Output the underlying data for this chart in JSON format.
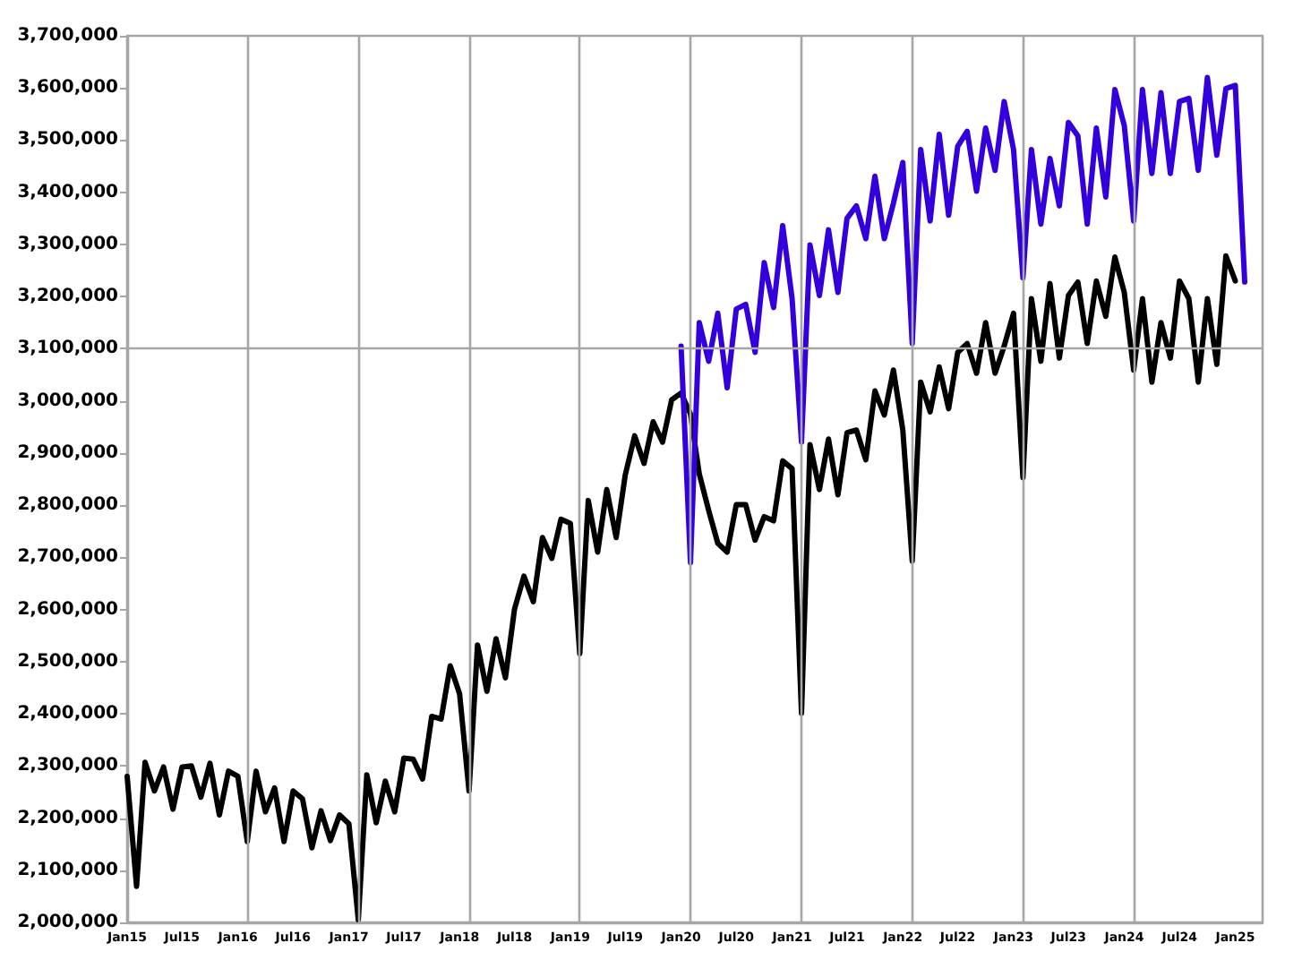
{
  "chart_data": {
    "type": "line",
    "marker": "none",
    "line_style": "solid",
    "xlim": [
      "2015-01",
      "2025-04"
    ],
    "xticks": [
      {
        "value": "2015-01",
        "label": "Jan15"
      },
      {
        "value": "2015-07",
        "label": "Jul15"
      },
      {
        "value": "2016-01",
        "label": "Jan16"
      },
      {
        "value": "2016-07",
        "label": "Jul16"
      },
      {
        "value": "2017-01",
        "label": "Jan17"
      },
      {
        "value": "2017-07",
        "label": "Jul17"
      },
      {
        "value": "2018-01",
        "label": "Jan18"
      },
      {
        "value": "2018-07",
        "label": "Jul18"
      },
      {
        "value": "2019-01",
        "label": "Jan19"
      },
      {
        "value": "2019-07",
        "label": "Jul19"
      },
      {
        "value": "2020-01",
        "label": "Jan20"
      },
      {
        "value": "2020-07",
        "label": "Jul20"
      },
      {
        "value": "2021-01",
        "label": "Jan21"
      },
      {
        "value": "2021-07",
        "label": "Jul21"
      },
      {
        "value": "2022-01",
        "label": "Jan22"
      },
      {
        "value": "2022-07",
        "label": "Jul22"
      },
      {
        "value": "2023-01",
        "label": "Jan23"
      },
      {
        "value": "2023-07",
        "label": "Jul23"
      },
      {
        "value": "2024-01",
        "label": "Jan24"
      },
      {
        "value": "2024-07",
        "label": "Jul24"
      },
      {
        "value": "2025-01",
        "label": "Jan25"
      }
    ],
    "ylim": [
      2000000,
      3700000
    ],
    "yticks": [
      {
        "value": 2000000,
        "label": "2,000,000"
      },
      {
        "value": 2100000,
        "label": "2,100,000"
      },
      {
        "value": 2200000,
        "label": "2,200,000"
      },
      {
        "value": 2300000,
        "label": "2,300,000"
      },
      {
        "value": 2400000,
        "label": "2,400,000"
      },
      {
        "value": 2500000,
        "label": "2,500,000"
      },
      {
        "value": 2600000,
        "label": "2,600,000"
      },
      {
        "value": 2700000,
        "label": "2,700,000"
      },
      {
        "value": 2800000,
        "label": "2,800,000"
      },
      {
        "value": 2900000,
        "label": "2,900,000"
      },
      {
        "value": 3000000,
        "label": "3,000,000"
      },
      {
        "value": 3100000,
        "label": "3,100,000"
      },
      {
        "value": 3200000,
        "label": "3,200,000"
      },
      {
        "value": 3300000,
        "label": "3,300,000"
      },
      {
        "value": 3400000,
        "label": "3,400,000"
      },
      {
        "value": 3500000,
        "label": "3,500,000"
      },
      {
        "value": 3600000,
        "label": "3,600,000"
      },
      {
        "value": 3700000,
        "label": "3,700,000"
      }
    ],
    "ref_lines": [
      {
        "axis": "y",
        "value": 3100000,
        "color": "#a6a6a6"
      },
      {
        "axis": "x",
        "value": "2016-02",
        "color": "#a6a6a6"
      },
      {
        "axis": "x",
        "value": "2017-02",
        "color": "#a6a6a6"
      },
      {
        "axis": "x",
        "value": "2018-02",
        "color": "#a6a6a6"
      },
      {
        "axis": "x",
        "value": "2019-02",
        "color": "#a6a6a6"
      },
      {
        "axis": "x",
        "value": "2020-02",
        "color": "#a6a6a6"
      },
      {
        "axis": "x",
        "value": "2021-02",
        "color": "#a6a6a6"
      },
      {
        "axis": "x",
        "value": "2022-02",
        "color": "#a6a6a6"
      },
      {
        "axis": "x",
        "value": "2023-02",
        "color": "#a6a6a6"
      },
      {
        "axis": "x",
        "value": "2024-02",
        "color": "#a6a6a6"
      }
    ],
    "series": [
      {
        "color": "#000000",
        "x": [
          "2015-01",
          "2015-02",
          "2015-03",
          "2015-04",
          "2015-05",
          "2015-06",
          "2015-07",
          "2015-08",
          "2015-09",
          "2015-10",
          "2015-11",
          "2015-12",
          "2016-01",
          "2016-02",
          "2016-03",
          "2016-04",
          "2016-05",
          "2016-06",
          "2016-07",
          "2016-08",
          "2016-09",
          "2016-10",
          "2016-11",
          "2016-12",
          "2017-01",
          "2017-02",
          "2017-03",
          "2017-04",
          "2017-05",
          "2017-06",
          "2017-07",
          "2017-08",
          "2017-09",
          "2017-10",
          "2017-11",
          "2017-12",
          "2018-01",
          "2018-02",
          "2018-03",
          "2018-04",
          "2018-05",
          "2018-06",
          "2018-07",
          "2018-08",
          "2018-09",
          "2018-10",
          "2018-11",
          "2018-12",
          "2019-01",
          "2019-02",
          "2019-03",
          "2019-04",
          "2019-05",
          "2019-06",
          "2019-07",
          "2019-08",
          "2019-09",
          "2019-10",
          "2019-11",
          "2019-12",
          "2020-01",
          "2020-02",
          "2020-03",
          "2020-04",
          "2020-05",
          "2020-06",
          "2020-07",
          "2020-08",
          "2020-09",
          "2020-10",
          "2020-11",
          "2020-12",
          "2021-01",
          "2021-02",
          "2021-03",
          "2021-04",
          "2021-05",
          "2021-06",
          "2021-07",
          "2021-08",
          "2021-09",
          "2021-10",
          "2021-11",
          "2021-12",
          "2022-01",
          "2022-02",
          "2022-03",
          "2022-04",
          "2022-05",
          "2022-06",
          "2022-07",
          "2022-08",
          "2022-09",
          "2022-10",
          "2022-11",
          "2022-12",
          "2023-01",
          "2023-02",
          "2023-03",
          "2023-04",
          "2023-05",
          "2023-06",
          "2023-07",
          "2023-08",
          "2023-09",
          "2023-10",
          "2023-11",
          "2023-12",
          "2024-01",
          "2024-02",
          "2024-03",
          "2024-04",
          "2024-05",
          "2024-06",
          "2024-07",
          "2024-08",
          "2024-09",
          "2024-10",
          "2024-11",
          "2024-12",
          "2025-01"
        ],
        "values": [
          2280000,
          2069000,
          2307000,
          2252000,
          2298000,
          2217000,
          2298000,
          2300000,
          2240000,
          2305000,
          2206000,
          2290000,
          2280000,
          2155000,
          2290000,
          2212000,
          2258000,
          2155000,
          2252000,
          2237000,
          2143000,
          2214000,
          2157000,
          2206000,
          2189000,
          2005000,
          2283000,
          2191000,
          2271000,
          2212000,
          2315000,
          2313000,
          2275000,
          2395000,
          2390000,
          2492000,
          2438000,
          2252000,
          2532000,
          2443000,
          2544000,
          2469000,
          2601000,
          2664000,
          2615000,
          2738000,
          2698000,
          2773000,
          2765000,
          2515000,
          2809000,
          2710000,
          2830000,
          2738000,
          2858000,
          2933000,
          2880000,
          2960000,
          2921000,
          3002000,
          3015000,
          2975000,
          2860000,
          2790000,
          2727000,
          2710000,
          2801000,
          2801000,
          2733000,
          2778000,
          2770000,
          2885000,
          2870000,
          2401000,
          2916000,
          2830000,
          2927000,
          2820000,
          2939000,
          2944000,
          2887000,
          3019000,
          2973000,
          3059000,
          2944000,
          2693000,
          3036000,
          2979000,
          3065000,
          2985000,
          3093000,
          3110000,
          3053000,
          3150000,
          3053000,
          3105000,
          3168000,
          2853000,
          3196000,
          3076000,
          3225000,
          3082000,
          3202000,
          3228000,
          3110000,
          3230000,
          3162000,
          3276000,
          3208000,
          3059000,
          3196000,
          3036000,
          3150000,
          3082000,
          3230000,
          3196000,
          3036000,
          3196000,
          3070000,
          3278000,
          3230000
        ]
      },
      {
        "color": "#3300dd",
        "x": [
          "2020-01",
          "2020-02",
          "2020-03",
          "2020-04",
          "2020-05",
          "2020-06",
          "2020-07",
          "2020-08",
          "2020-09",
          "2020-10",
          "2020-11",
          "2020-12",
          "2021-01",
          "2021-02",
          "2021-03",
          "2021-04",
          "2021-05",
          "2021-06",
          "2021-07",
          "2021-08",
          "2021-09",
          "2021-10",
          "2021-11",
          "2021-12",
          "2022-01",
          "2022-02",
          "2022-03",
          "2022-04",
          "2022-05",
          "2022-06",
          "2022-07",
          "2022-08",
          "2022-09",
          "2022-10",
          "2022-11",
          "2022-12",
          "2023-01",
          "2023-02",
          "2023-03",
          "2023-04",
          "2023-05",
          "2023-06",
          "2023-07",
          "2023-08",
          "2023-09",
          "2023-10",
          "2023-11",
          "2023-12",
          "2024-01",
          "2024-02",
          "2024-03",
          "2024-04",
          "2024-05",
          "2024-06",
          "2024-07",
          "2024-08",
          "2024-09",
          "2024-10",
          "2024-11",
          "2024-12",
          "2025-01",
          "2025-02"
        ],
        "values": [
          3105000,
          2690000,
          3150000,
          3076000,
          3168000,
          3025000,
          3176000,
          3185000,
          3093000,
          3265000,
          3179000,
          3336000,
          3196000,
          2921000,
          3299000,
          3202000,
          3328000,
          3208000,
          3350000,
          3374000,
          3311000,
          3431000,
          3311000,
          3379000,
          3457000,
          3110000,
          3482000,
          3345000,
          3511000,
          3356000,
          3488000,
          3517000,
          3402000,
          3523000,
          3442000,
          3574000,
          3482000,
          3236000,
          3482000,
          3339000,
          3465000,
          3374000,
          3534000,
          3508000,
          3339000,
          3523000,
          3391000,
          3597000,
          3528000,
          3345000,
          3597000,
          3436000,
          3591000,
          3436000,
          3574000,
          3580000,
          3442000,
          3620000,
          3471000,
          3599000,
          3605000,
          3228000
        ]
      }
    ]
  }
}
